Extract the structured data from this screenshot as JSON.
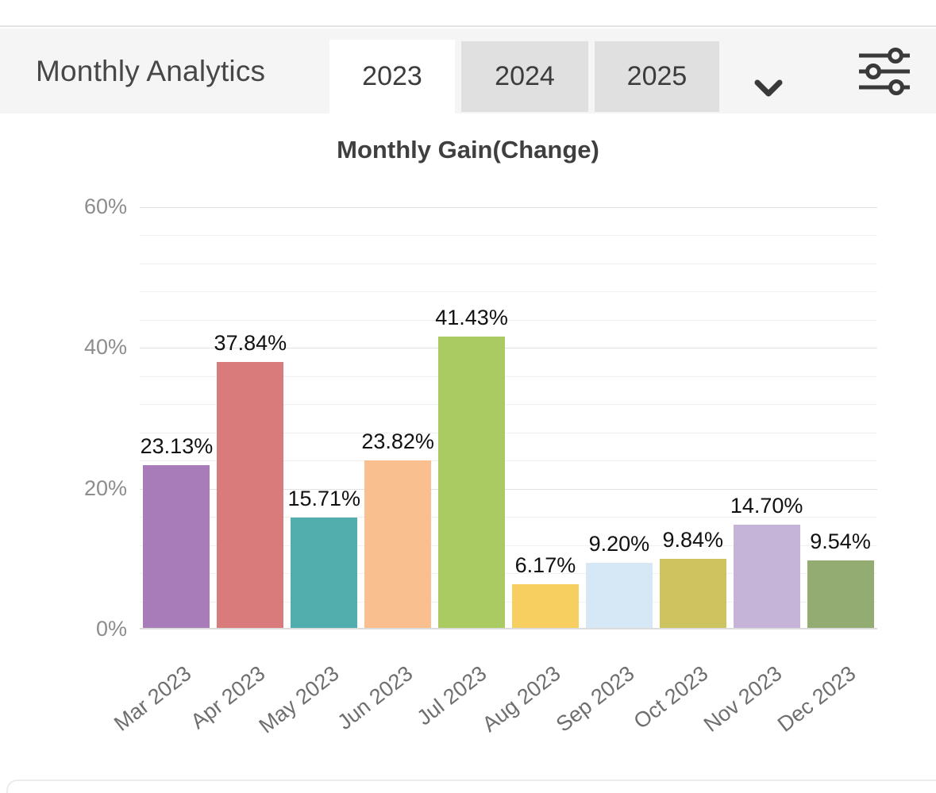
{
  "header": {
    "title": "Monthly Analytics",
    "tabs": [
      {
        "label": "2023",
        "active": true
      },
      {
        "label": "2024",
        "active": false
      },
      {
        "label": "2025",
        "active": false
      }
    ],
    "dropdown_icon": "chevron-down-icon",
    "filter_icon": "sliders-icon"
  },
  "chart_data": {
    "type": "bar",
    "title": "Monthly Gain(Change)",
    "categories": [
      "Mar 2023",
      "Apr 2023",
      "May 2023",
      "Jun 2023",
      "Jul 2023",
      "Aug 2023",
      "Sep 2023",
      "Oct 2023",
      "Nov 2023",
      "Dec 2023"
    ],
    "values": [
      23.13,
      37.84,
      15.71,
      23.82,
      41.43,
      6.17,
      9.2,
      9.84,
      14.7,
      9.54
    ],
    "value_labels": [
      "23.13%",
      "37.84%",
      "15.71%",
      "23.82%",
      "41.43%",
      "6.17%",
      "9.20%",
      "9.84%",
      "14.70%",
      "9.54%"
    ],
    "bar_colors": [
      "#a87cb8",
      "#da7b7b",
      "#52adad",
      "#fabf8e",
      "#a9cb62",
      "#f6cf60",
      "#d6e7f6",
      "#cdc45f",
      "#c6b4d8",
      "#93ac71"
    ],
    "xlabel": "",
    "ylabel": "",
    "ylim": [
      0,
      60
    ],
    "y_tick_values": [
      0,
      20,
      40,
      60
    ],
    "y_tick_labels": [
      "0%",
      "20%",
      "40%",
      "60%"
    ],
    "y_major_step": 20,
    "y_minor_step": 4,
    "grid": true,
    "legend": false,
    "x_label_rotation_deg": -38
  },
  "colors": {
    "header_bg": "#f5f5f5",
    "tab_active_bg": "#ffffff",
    "tab_inactive_bg": "#e0e0e0",
    "grid_major": "#e2e2e2",
    "grid_minor": "#f1f1f1",
    "axis_line": "#dcdcdc",
    "y_label_text": "#8d8d8d",
    "x_label_text": "#6e6e6e",
    "value_label_text": "#111111",
    "header_title_text": "#474747",
    "chart_title_text": "#3f3f3f",
    "icon": "#3a3a3a"
  }
}
